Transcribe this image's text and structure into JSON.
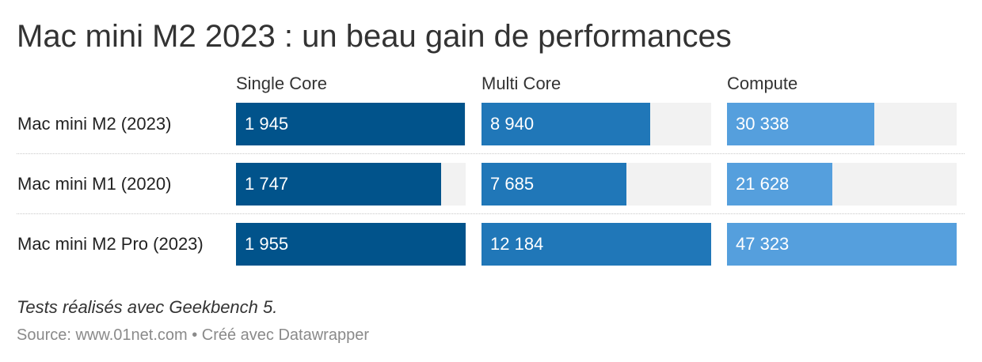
{
  "title": "Mac mini M2 2023 : un beau gain de performances",
  "note": "Tests réalisés avec Geekbench 5.",
  "source": "Source: www.01net.com • Créé avec Datawrapper",
  "colors": {
    "single_core": "#01538b",
    "multi_core": "#2077b8",
    "compute": "#559fdd",
    "track": "#f2f2f2"
  },
  "chart_data": {
    "type": "bar",
    "title": "Mac mini M2 2023 : un beau gain de performances",
    "categories": [
      "Mac mini M2 (2023)",
      "Mac mini M1 (2020)",
      "Mac mini M2 Pro (2023)"
    ],
    "series": [
      {
        "name": "Single Core",
        "values": [
          1945,
          1747,
          1955
        ],
        "labels": [
          "1 945",
          "1 747",
          "1 955"
        ],
        "color": "#01538b"
      },
      {
        "name": "Multi Core",
        "values": [
          8940,
          7685,
          12184
        ],
        "labels": [
          "8 940",
          "7 685",
          "12 184"
        ],
        "color": "#2077b8"
      },
      {
        "name": "Compute",
        "values": [
          30338,
          21628,
          47323
        ],
        "labels": [
          "30 338",
          "21 628",
          "47 323"
        ],
        "color": "#559fdd"
      }
    ],
    "xlabel": "",
    "ylabel": "",
    "grid": false,
    "legend": "column headers"
  }
}
